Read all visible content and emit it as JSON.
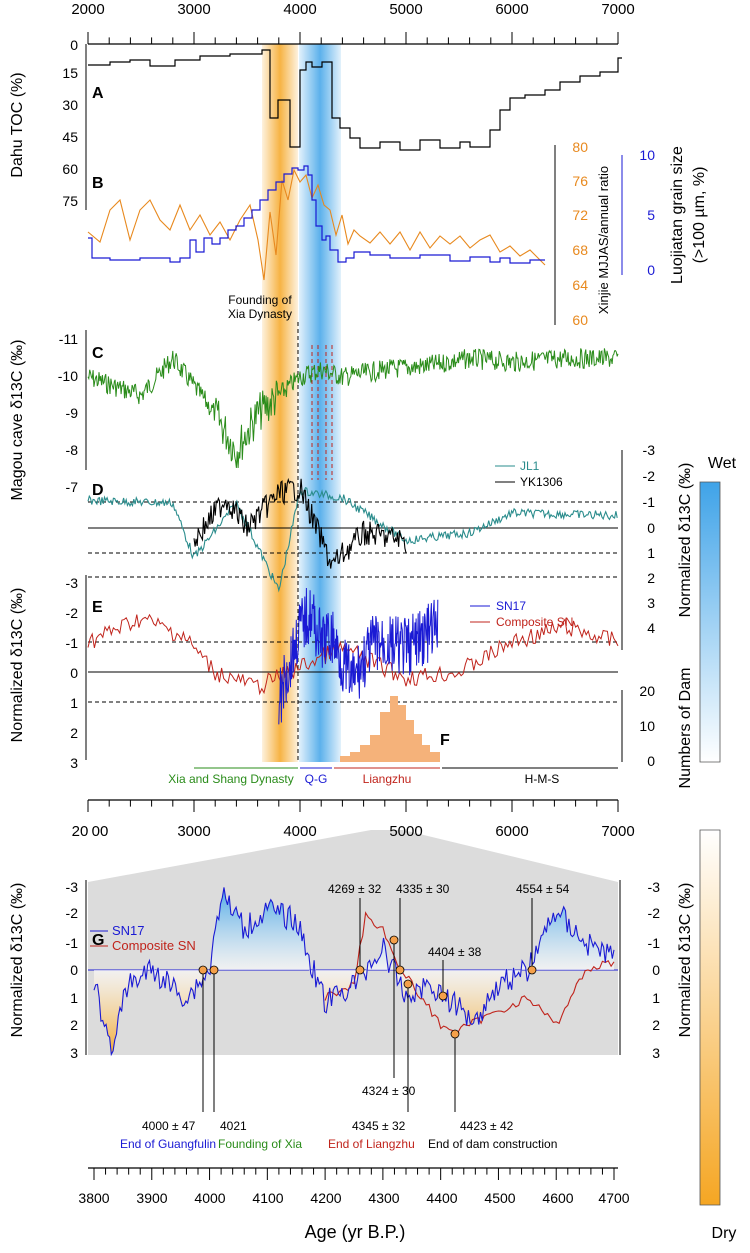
{
  "figure": {
    "top_axis_ticks": [
      "2000",
      "3000",
      "4000",
      "5000",
      "6000",
      "7000"
    ],
    "bottom_axis_ticks_1": [
      "20",
      "00",
      "3000",
      "4000",
      "5000",
      "6000",
      "7000"
    ],
    "bottom_axis_ticks_2": [
      "3800",
      "3900",
      "4000",
      "4100",
      "4200",
      "4300",
      "4400",
      "4500",
      "4600",
      "4700"
    ],
    "xlabel": "Age (yr B.P.)",
    "wet_label": "Wet",
    "dry_label": "Dry",
    "colors": {
      "orange_band": "#f5a623",
      "blue_band": "#3fa3e8",
      "toc": "#000000",
      "xinjie": "#e8891e",
      "luojiatan": "#1a1ad4",
      "magou": "#2a8c1a",
      "jl1": "#2a8c8c",
      "yk1306": "#000000",
      "sn17": "#1a1ad4",
      "composite_sn": "#c0241c",
      "dams": "#f5b27a",
      "grey_bg": "#dcdcdc"
    }
  },
  "panels": {
    "A": {
      "letter": "A",
      "ylabel": "Dahu TOC (%)",
      "ticks": [
        "0",
        "15",
        "30",
        "45",
        "60",
        "75"
      ]
    },
    "B": {
      "letter": "B",
      "ylabel_right1": "Xinjie MJJAS/annual ratio",
      "ticks_right1": [
        "80",
        "76",
        "72",
        "68",
        "64",
        "60"
      ],
      "ylabel_right2_line1": "Luojiatan grain size",
      "ylabel_right2_line2": "(>100 µm, %)",
      "ticks_right2": [
        "10",
        "5",
        "0"
      ]
    },
    "C": {
      "letter": "C",
      "ylabel": "Magou cave δ13C (‰)",
      "ticks": [
        "-11",
        "-10",
        "-9",
        "-8",
        "-7"
      ],
      "annotation_line1": "Founding of",
      "annotation_line2": "Xia Dynasty"
    },
    "D": {
      "letter": "D",
      "legend": [
        "JL1",
        "YK1306"
      ],
      "ylabel_right": "Normalized δ13C (‰)",
      "ticks_right": [
        "-3",
        "-2",
        "-1",
        "0",
        "1",
        "2",
        "3",
        "4"
      ]
    },
    "E": {
      "letter": "E",
      "legend": [
        "SN17",
        "Composite SN"
      ],
      "ylabel": "Normalized δ13C (‰)",
      "ticks": [
        "-3",
        "-2",
        "-1",
        "0",
        "1",
        "2",
        "3"
      ]
    },
    "F": {
      "letter": "F",
      "ylabel": "Numbers of Dam",
      "ticks": [
        "20",
        "10",
        "0"
      ]
    },
    "periods": [
      {
        "label": "Xia and Shang Dynasty",
        "color": "#2a8c1a"
      },
      {
        "label": "Q-G",
        "color": "#1a1ad4"
      },
      {
        "label": "Liangzhu",
        "color": "#c0241c"
      },
      {
        "label": "H-M-S",
        "color": "#000000"
      }
    ],
    "G": {
      "letter": "G",
      "legend": [
        "SN17",
        "Composite SN"
      ],
      "ylabel": "Normalized δ13C (‰)",
      "ticks": [
        "-3",
        "-2",
        "-1",
        "0",
        "1",
        "2",
        "3"
      ],
      "labels": {
        "a4269": "4269 ± 32",
        "a4335": "4335 ± 30",
        "a4554": "4554 ± 54",
        "a4404": "4404 ± 38",
        "a4324": "4324 ± 30",
        "a4000": "4000 ± 47",
        "a4021": "4021",
        "a4345": "4345 ± 32",
        "a4423": "4423 ± 42",
        "end_guangfulin": "End of Guangfulin",
        "founding_xia": "Founding of Xia",
        "end_liangzhu": "End of Liangzhu",
        "end_dam": "End of dam construction"
      }
    }
  },
  "chart_data": [
    {
      "type": "line",
      "ylabel": "Dahu TOC (%)",
      "ylim": [
        0,
        75
      ],
      "series": [
        {
          "x": [
            2000,
            2300,
            2800,
            3200,
            3600,
            3700,
            3750,
            3900,
            4000,
            4200,
            4300,
            4500,
            5000,
            5500,
            6000,
            6500,
            6800,
            7000
          ],
          "values": [
            12,
            10,
            8,
            7,
            5,
            3,
            35,
            44,
            10,
            10,
            38,
            44,
            46,
            46,
            44,
            30,
            20,
            8
          ]
        }
      ]
    },
    {
      "type": "line",
      "series": [
        {
          "name": "Xinjie MJJAS/annual ratio",
          "x": [
            2000,
            2500,
            3000,
            3500,
            3700,
            3900,
            4000,
            4200,
            4400,
            5000,
            6000,
            6500
          ],
          "values": [
            70,
            76,
            72,
            74,
            76,
            77,
            78,
            76,
            68,
            67,
            67,
            66
          ]
        },
        {
          "name": "Luojiatan grain size (>100 µm, %)",
          "x": [
            2000,
            2500,
            3000,
            3500,
            3700,
            3900,
            4000,
            4100,
            4300,
            5000,
            6000,
            6500
          ],
          "values": [
            1,
            0.5,
            1,
            2,
            4,
            8,
            9,
            8,
            2,
            1,
            1,
            0.5
          ]
        }
      ]
    },
    {
      "type": "line",
      "ylabel": "Magou cave δ13C (‰)",
      "ylim": [
        -11,
        -7
      ],
      "series": [
        {
          "x": [
            2000,
            2500,
            2800,
            3200,
            3400,
            3600,
            3800,
            4000,
            4200,
            4400,
            4800,
            5200,
            5600,
            6000,
            6500,
            7000
          ],
          "values": [
            -10,
            -9.5,
            -10.5,
            -9,
            -8,
            -9,
            -9.5,
            -10,
            -10.2,
            -10,
            -10.2,
            -10.3,
            -10.5,
            -10.4,
            -10.5,
            -10.5
          ]
        }
      ]
    },
    {
      "type": "line",
      "series": [
        {
          "name": "JL1",
          "x": [
            2000,
            2800,
            3000,
            3400,
            3800,
            4000,
            4400,
            5000,
            5600,
            6000,
            7000
          ],
          "values": [
            -1.1,
            -1,
            1.2,
            -1,
            2.5,
            -1.5,
            -1.2,
            0.5,
            0.2,
            -0.6,
            -0.5
          ]
        },
        {
          "name": "YK1306",
          "x": [
            3000,
            3300,
            3500,
            3800,
            4000,
            4300,
            4600,
            5000
          ],
          "values": [
            0.5,
            -1.2,
            0,
            -1.4,
            -1.6,
            1.5,
            0.2,
            0.5
          ]
        }
      ]
    },
    {
      "type": "line",
      "series": [
        {
          "name": "SN17",
          "x": [
            3800,
            4000,
            4100,
            4200,
            4300,
            4400,
            4500,
            4700,
            5000,
            5300
          ],
          "values": [
            1,
            -1.5,
            -2,
            -1,
            -1.2,
            -0.3,
            0.3,
            -1,
            -0.8,
            -1.5
          ]
        },
        {
          "name": "Composite SN",
          "x": [
            2000,
            2500,
            2900,
            3200,
            3600,
            4200,
            4400,
            5000,
            5500,
            6000,
            6500,
            7000
          ],
          "values": [
            -1,
            -1.8,
            -1.2,
            0,
            0.5,
            -0.5,
            -0.8,
            0.2,
            0,
            -1,
            -1.5,
            -1
          ]
        }
      ]
    },
    {
      "type": "bar",
      "ylabel": "Numbers of Dam",
      "categories": [
        "4500",
        "4600",
        "4700",
        "4800",
        "4900",
        "5000",
        "5100",
        "5200"
      ],
      "values": [
        1,
        2,
        6,
        17,
        14,
        6,
        2,
        1
      ]
    },
    {
      "type": "line",
      "xlabel": "Age (yr B.P.)",
      "ylabel": "Normalized δ13C (‰)",
      "ylim": [
        -3,
        3
      ],
      "series": [
        {
          "name": "SN17",
          "x": [
            3800,
            3830,
            3860,
            3900,
            3960,
            4000,
            4020,
            4060,
            4100,
            4150,
            4200,
            4250,
            4300,
            4340,
            4380,
            4420,
            4460,
            4500,
            4550,
            4600,
            4650,
            4700
          ],
          "values": [
            0.5,
            2.8,
            0.5,
            0,
            1,
            0,
            -2.8,
            -1.5,
            -2.2,
            -1.8,
            1.2,
            0.5,
            -0.8,
            1,
            0.5,
            1.2,
            1.8,
            0.5,
            0,
            -2.2,
            -1,
            -0.5
          ]
        },
        {
          "name": "Composite SN",
          "x": [
            4200,
            4250,
            4270,
            4300,
            4330,
            4350,
            4400,
            4430,
            4500,
            4550,
            4600,
            4650,
            4700
          ],
          "values": [
            1,
            0.5,
            -2,
            -1.5,
            0,
            0.5,
            2,
            2.2,
            1.5,
            1,
            2,
            0,
            -0.3
          ]
        }
      ]
    }
  ]
}
